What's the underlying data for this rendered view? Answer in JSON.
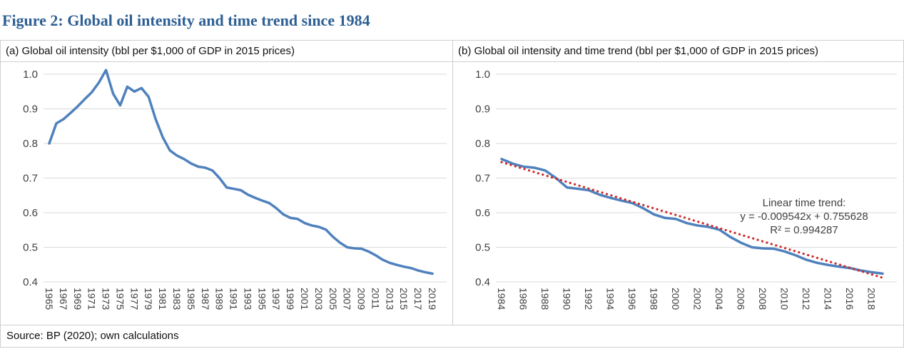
{
  "figure_title": "Figure 2: Global oil intensity and time trend since 1984",
  "source_note": "Source: BP (2020); own calculations",
  "colors": {
    "title_text": "#2e5f94",
    "series_blue": "#4f81bd",
    "trend_red": "#d02828",
    "gridline": "#d9d9d9",
    "tick_text": "#404040",
    "border": "#cfcfcf",
    "header_text": "#111111"
  },
  "chart_data": [
    {
      "type": "line",
      "title": "(a) Global oil intensity (bbl per $1,000 of GDP in 2015 prices)",
      "ylim": [
        0.4,
        1.0
      ],
      "yticks": [
        1.0,
        0.9,
        0.8,
        0.7,
        0.6,
        0.5,
        0.4
      ],
      "xtick_every": 2,
      "grid": true,
      "legend": "none",
      "years": [
        1965,
        1966,
        1967,
        1968,
        1969,
        1970,
        1971,
        1972,
        1973,
        1974,
        1975,
        1976,
        1977,
        1978,
        1979,
        1980,
        1981,
        1982,
        1983,
        1984,
        1985,
        1986,
        1987,
        1988,
        1989,
        1990,
        1991,
        1992,
        1993,
        1994,
        1995,
        1996,
        1997,
        1998,
        1999,
        2000,
        2001,
        2002,
        2003,
        2004,
        2005,
        2006,
        2007,
        2008,
        2009,
        2010,
        2011,
        2012,
        2013,
        2014,
        2015,
        2016,
        2017,
        2018,
        2019
      ],
      "values": [
        0.8,
        0.858,
        0.87,
        0.888,
        0.907,
        0.928,
        0.948,
        0.976,
        1.012,
        0.944,
        0.91,
        0.964,
        0.95,
        0.96,
        0.935,
        0.87,
        0.818,
        0.78,
        0.765,
        0.755,
        0.742,
        0.733,
        0.73,
        0.722,
        0.7,
        0.673,
        0.669,
        0.665,
        0.652,
        0.643,
        0.635,
        0.628,
        0.613,
        0.595,
        0.585,
        0.582,
        0.57,
        0.563,
        0.559,
        0.551,
        0.53,
        0.513,
        0.5,
        0.497,
        0.496,
        0.488,
        0.477,
        0.464,
        0.455,
        0.449,
        0.444,
        0.44,
        0.433,
        0.428,
        0.424
      ]
    },
    {
      "type": "line",
      "title": "(b) Global oil intensity and time trend (bbl per $1,000 of GDP in 2015 prices)",
      "ylim": [
        0.4,
        1.0
      ],
      "yticks": [
        1.0,
        0.9,
        0.8,
        0.7,
        0.6,
        0.5,
        0.4
      ],
      "xtick_every": 2,
      "grid": true,
      "legend": "none",
      "years": [
        1984,
        1985,
        1986,
        1987,
        1988,
        1989,
        1990,
        1991,
        1992,
        1993,
        1994,
        1995,
        1996,
        1997,
        1998,
        1999,
        2000,
        2001,
        2002,
        2003,
        2004,
        2005,
        2006,
        2007,
        2008,
        2009,
        2010,
        2011,
        2012,
        2013,
        2014,
        2015,
        2016,
        2017,
        2018,
        2019
      ],
      "values": [
        0.755,
        0.742,
        0.733,
        0.73,
        0.722,
        0.7,
        0.673,
        0.669,
        0.665,
        0.652,
        0.643,
        0.635,
        0.628,
        0.613,
        0.595,
        0.585,
        0.582,
        0.57,
        0.563,
        0.559,
        0.551,
        0.53,
        0.513,
        0.5,
        0.497,
        0.496,
        0.488,
        0.477,
        0.464,
        0.455,
        0.449,
        0.444,
        0.44,
        0.433,
        0.428,
        0.424
      ],
      "trend": {
        "slope": -0.009542,
        "intercept": 0.755628,
        "r2": 0.994287,
        "x_start": 1,
        "label_lines": [
          "Linear time trend:",
          "y = -0.009542x + 0.755628",
          "R² = 0.994287"
        ]
      }
    }
  ]
}
